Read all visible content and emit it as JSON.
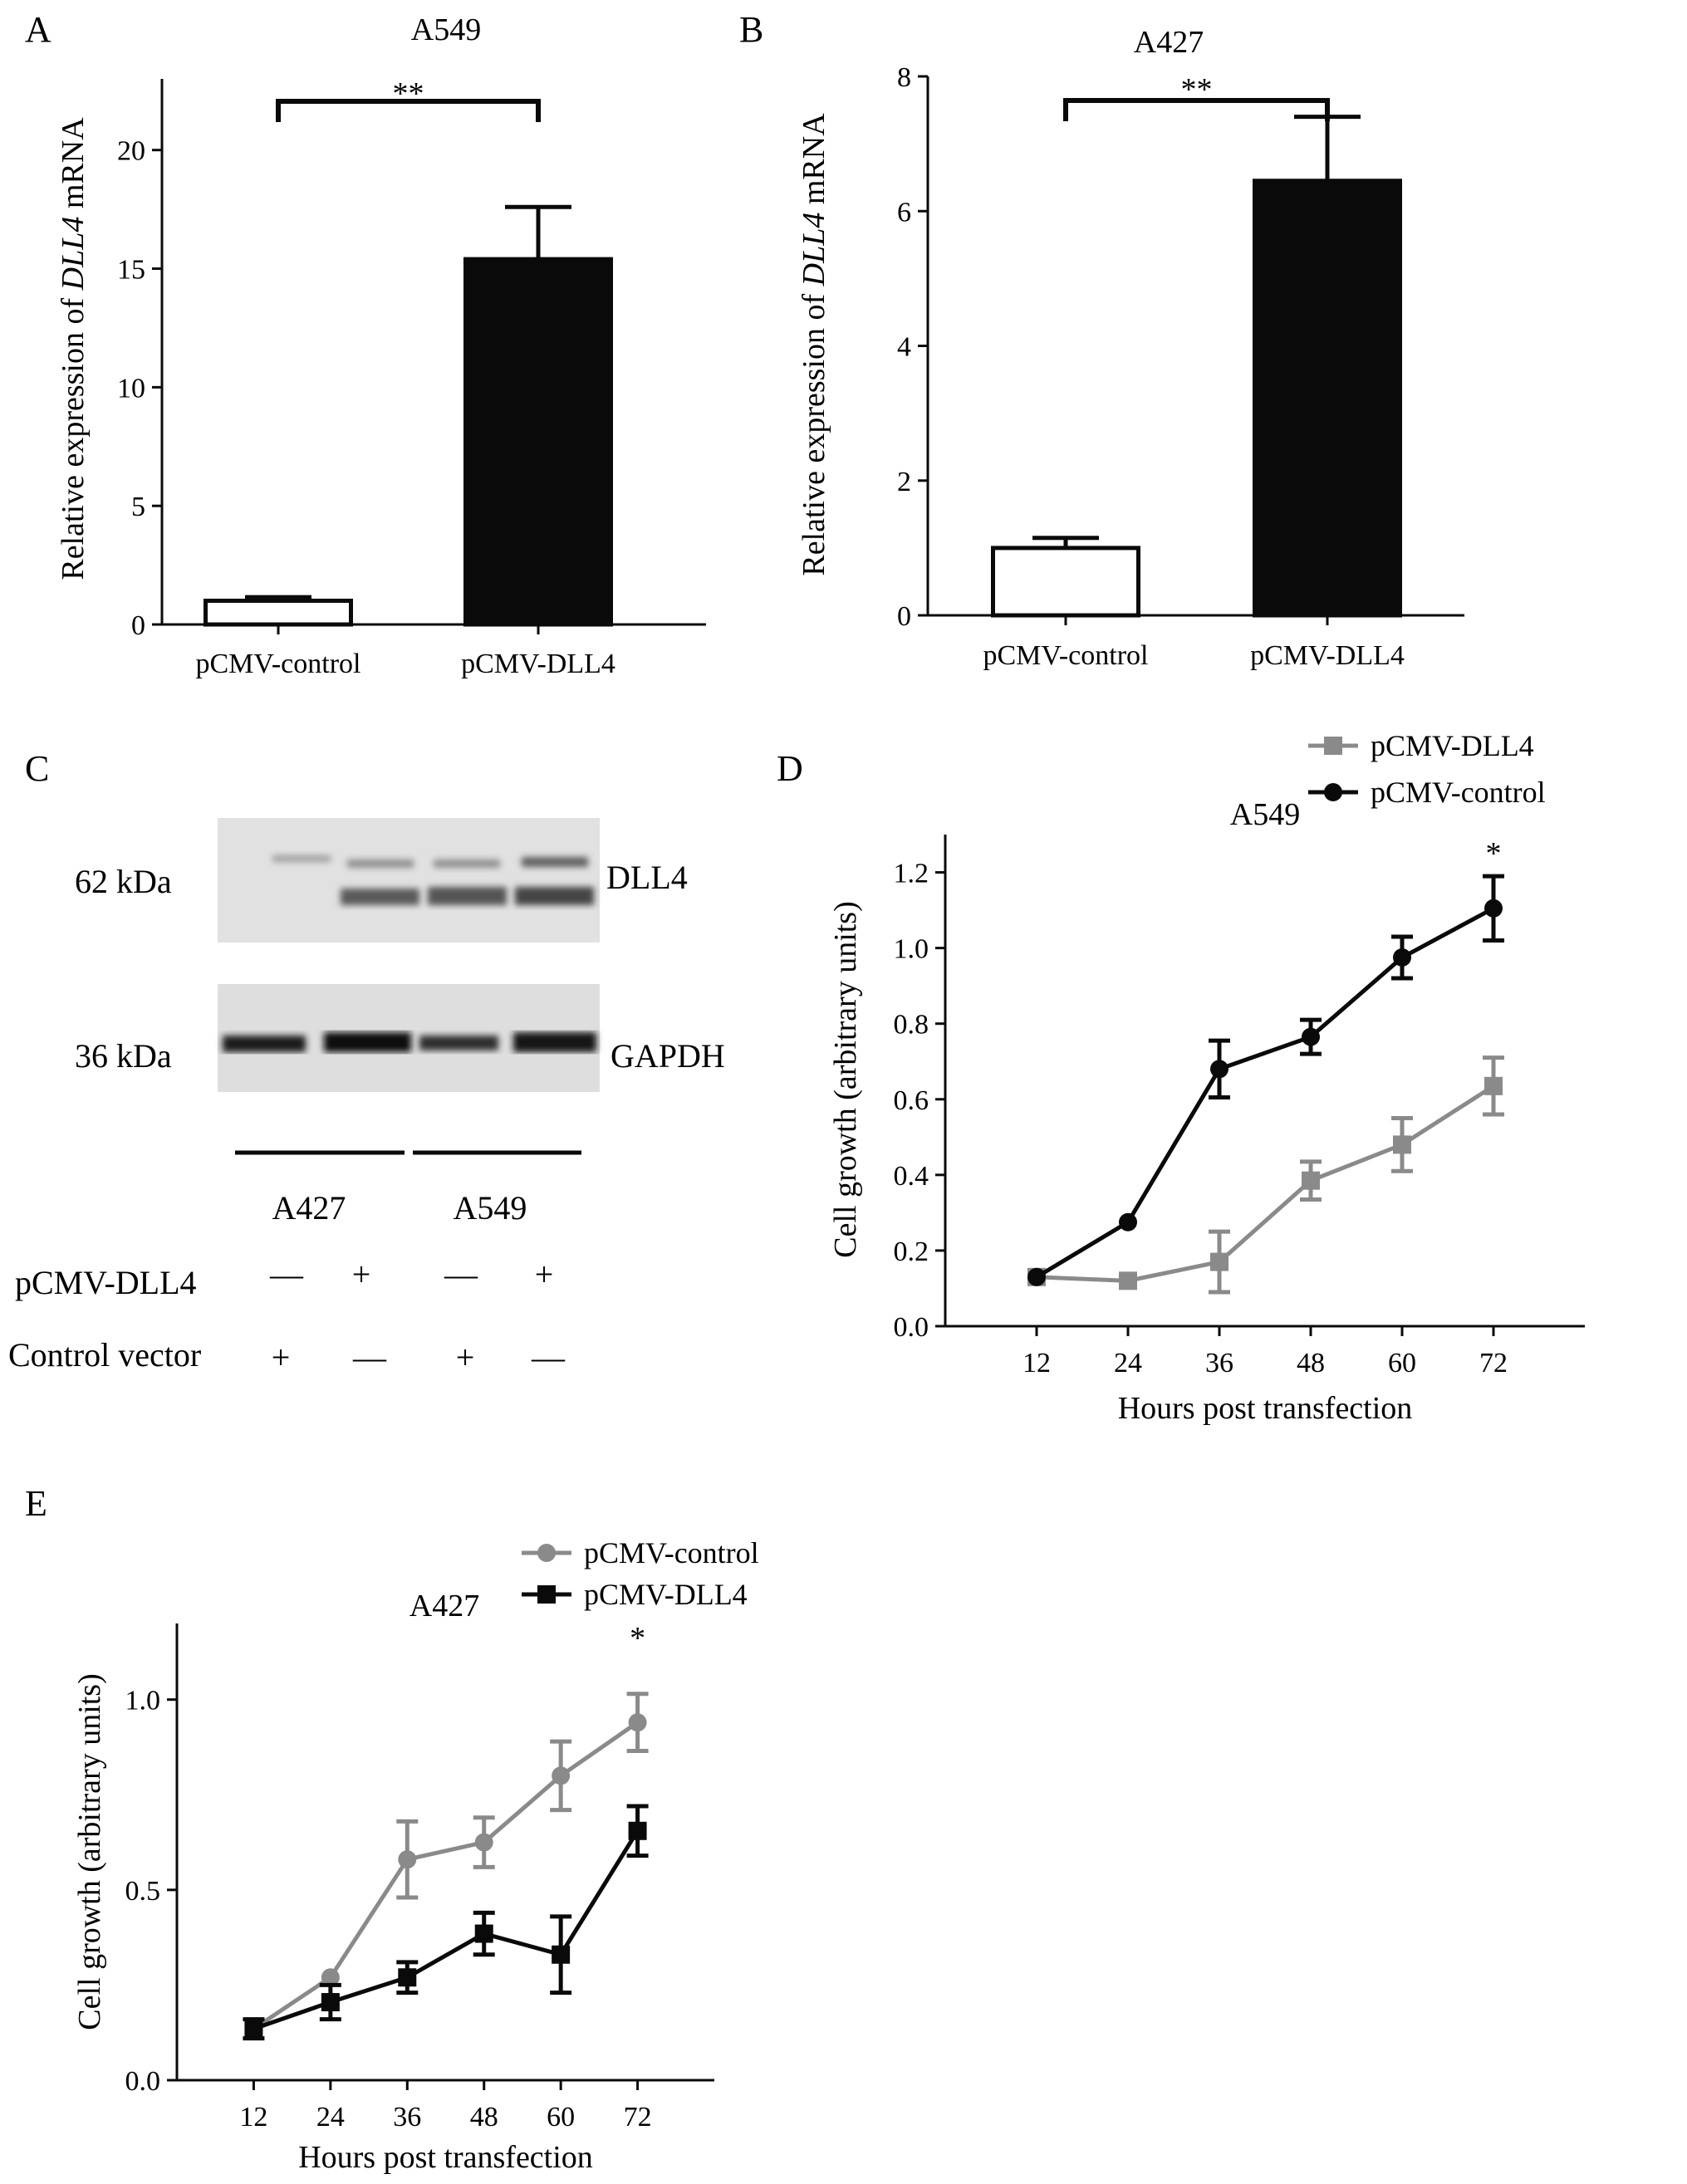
{
  "colors": {
    "black": "#0a0a0a",
    "gray": "#8a8a8a",
    "white": "#ffffff"
  },
  "chart_data": [
    {
      "panel": "A",
      "type": "bar",
      "title": "A549",
      "ylabel_pre": "Relative expression of ",
      "ylabel_italic": "DLL4",
      "ylabel_post": " mRNA",
      "categories": [
        "pCMV-control",
        "pCMV-DLL4"
      ],
      "values": [
        1.0,
        15.4
      ],
      "errors": [
        0.15,
        2.2
      ],
      "bar_fills": [
        "#ffffff",
        "#0a0a0a"
      ],
      "ylim": [
        0,
        23
      ],
      "yticks": [
        0,
        5,
        10,
        15,
        20
      ],
      "significance": "**"
    },
    {
      "panel": "B",
      "type": "bar",
      "title": "A427",
      "ylabel_pre": "Relative expression of ",
      "ylabel_italic": "DLL4",
      "ylabel_post": " mRNA",
      "categories": [
        "pCMV-control",
        "pCMV-DLL4"
      ],
      "values": [
        1.0,
        6.45
      ],
      "errors": [
        0.15,
        0.95
      ],
      "bar_fills": [
        "#ffffff",
        "#0a0a0a"
      ],
      "ylim": [
        0,
        8
      ],
      "yticks": [
        0,
        2,
        4,
        6,
        8
      ],
      "significance": "**"
    },
    {
      "panel": "D",
      "type": "line",
      "title": "A549",
      "xlabel": "Hours post transfection",
      "ylabel": "Cell growth (arbitrary units)",
      "x": [
        12,
        24,
        36,
        48,
        60,
        72
      ],
      "xlim": [
        0,
        84
      ],
      "ylim": [
        0,
        1.3
      ],
      "yticks": [
        "0.0",
        "0.2",
        "0.4",
        "0.6",
        "0.8",
        "1.0",
        "1.2"
      ],
      "legend": "top-right",
      "series": [
        {
          "name": "pCMV-DLL4",
          "marker": "square",
          "color": "#8a8a8a",
          "values": [
            0.13,
            0.12,
            0.17,
            0.385,
            0.48,
            0.635
          ],
          "errors": [
            0.015,
            0.015,
            0.08,
            0.05,
            0.07,
            0.075
          ]
        },
        {
          "name": "pCMV-control",
          "marker": "circle",
          "color": "#0a0a0a",
          "values": [
            0.13,
            0.275,
            0.68,
            0.765,
            0.975,
            1.105
          ],
          "errors": [
            0.015,
            0.015,
            0.075,
            0.045,
            0.055,
            0.085
          ]
        }
      ],
      "significance": "*"
    },
    {
      "panel": "E",
      "type": "line",
      "title": "A427",
      "xlabel": "Hours post transfection",
      "ylabel": "Cell growth (arbitrary units)",
      "x": [
        12,
        24,
        36,
        48,
        60,
        72
      ],
      "xlim": [
        0,
        84
      ],
      "ylim": [
        0,
        1.2
      ],
      "yticks": [
        "0.0",
        "0.5",
        "1.0"
      ],
      "legend": "top-right",
      "series": [
        {
          "name": "pCMV-control",
          "marker": "circle",
          "color": "#8a8a8a",
          "values": [
            0.135,
            0.27,
            0.58,
            0.625,
            0.8,
            0.94
          ],
          "errors": [
            0.015,
            0.015,
            0.1,
            0.065,
            0.09,
            0.075
          ]
        },
        {
          "name": "pCMV-DLL4",
          "marker": "square",
          "color": "#0a0a0a",
          "values": [
            0.135,
            0.205,
            0.27,
            0.385,
            0.33,
            0.655
          ],
          "errors": [
            0.025,
            0.045,
            0.04,
            0.055,
            0.1,
            0.065
          ]
        }
      ],
      "significance": "*"
    }
  ],
  "blot": {
    "panel": "C",
    "labels": {
      "dll4": "DLL4",
      "gapdh": "GAPDH",
      "kda62": "62 kDa",
      "kda36": "36 kDa",
      "group1": "A427",
      "group2": "A549",
      "row1": "pCMV-DLL4",
      "row2": "Control vector"
    },
    "row1_signs": [
      "—",
      "+",
      "—",
      "+"
    ],
    "row2_signs": [
      "+",
      "—",
      "+",
      "—"
    ]
  }
}
